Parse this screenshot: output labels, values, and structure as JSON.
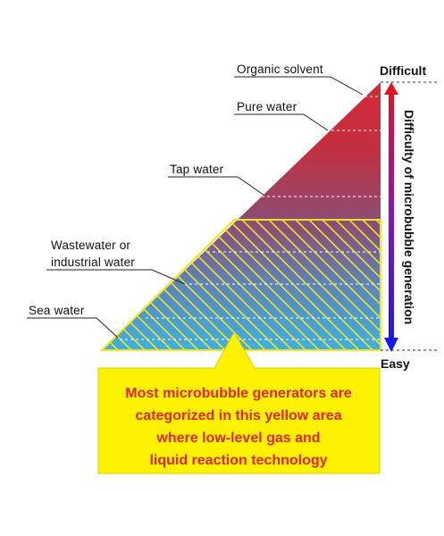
{
  "labels": {
    "organic_solvent": "Organic solvent",
    "pure_water": "Pure water",
    "tap_water": "Tap water",
    "wastewater_line1": "Wastewater or",
    "wastewater_line2": "industrial water",
    "sea_water": "Sea water"
  },
  "axis": {
    "top": "Difficult",
    "bottom": "Easy",
    "title": "Difficulty of microbubble generation"
  },
  "callout": {
    "lines": [
      "Most microbubble generators are",
      "categorized in this yellow area",
      "where low-level gas and",
      "liquid reaction technology"
    ]
  },
  "colors": {
    "top_red": "#d42a37",
    "mid_purple": "#86507c",
    "bottom_blue": "#3fa8dc",
    "hatch_yellow": "#f1e61a",
    "callout_fill": "#fff200",
    "callout_text": "#e0262b",
    "arrow_red": "#e8101e",
    "arrow_blue": "#1318f0"
  }
}
